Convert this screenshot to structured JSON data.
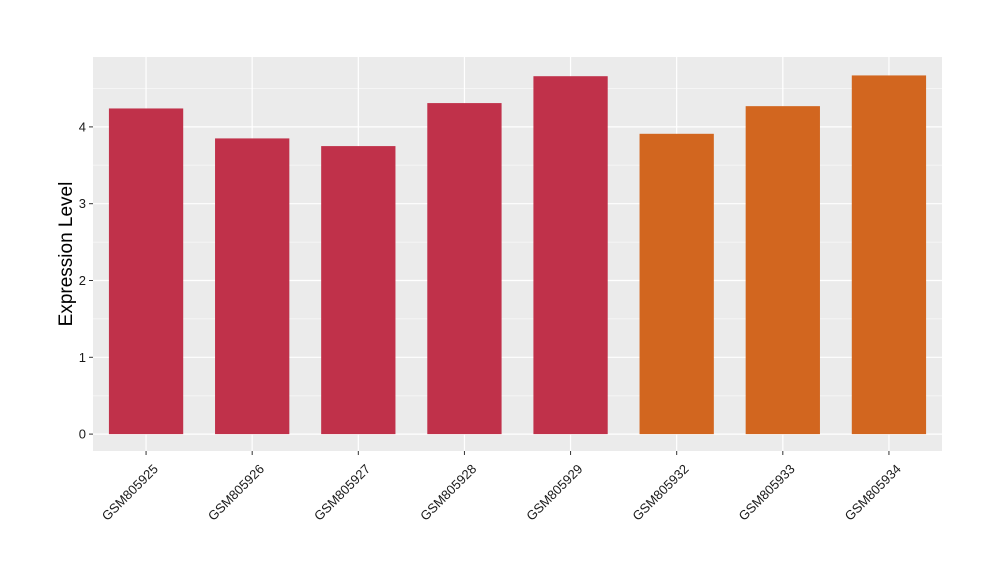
{
  "chart_data": {
    "type": "bar",
    "xlabel": "",
    "ylabel": "Expression Level",
    "ylim": [
      -0.22,
      4.91
    ],
    "yticks": [
      0,
      1,
      2,
      3,
      4
    ],
    "grid": true,
    "legend": "none",
    "categories": [
      "GSM805925",
      "GSM805926",
      "GSM805927",
      "GSM805928",
      "GSM805929",
      "GSM805932",
      "GSM805933",
      "GSM805934"
    ],
    "values": [
      4.24,
      3.85,
      3.75,
      4.31,
      4.66,
      3.91,
      4.27,
      4.67
    ],
    "bar_colors": [
      "#c0314a",
      "#c0314a",
      "#c0314a",
      "#c0314a",
      "#c0314a",
      "#d2661f",
      "#d2661f",
      "#d2661f"
    ]
  },
  "colors": {
    "panel_background": "#ebebeb",
    "grid_major": "#ffffff",
    "grid_minor": "#f5f5f5",
    "tick": "#333333"
  }
}
